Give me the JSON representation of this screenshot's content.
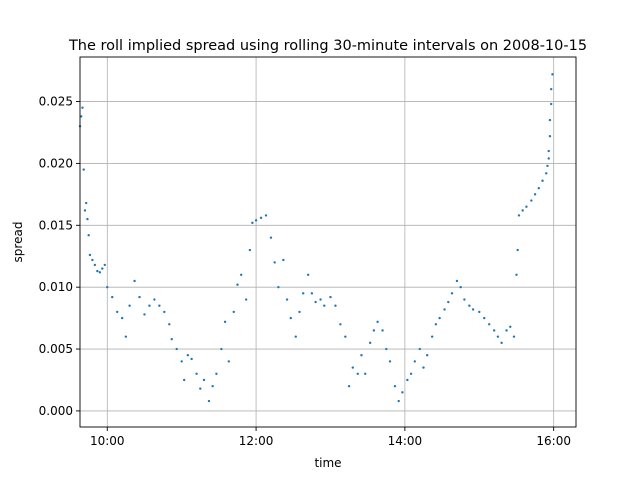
{
  "chart_data": {
    "type": "scatter",
    "title": "The roll implied spread using rolling 30-minute intervals on 2008-10-15",
    "xlabel": "time",
    "ylabel": "spread",
    "x_ticks": [
      "10:00",
      "12:00",
      "14:00",
      "16:00"
    ],
    "y_ticks": [
      "0.000",
      "0.005",
      "0.010",
      "0.015",
      "0.020",
      "0.025"
    ],
    "xlim": [
      "09:38",
      "16:18"
    ],
    "ylim": [
      -0.0013,
      0.0286
    ],
    "grid": true,
    "marker_color": "#1f77b4",
    "series": [
      {
        "points": [
          [
            "09:35",
            0.0215
          ],
          [
            "09:36",
            0.0222
          ],
          [
            "09:37",
            0.0226
          ],
          [
            "09:38",
            0.023
          ],
          [
            "09:39",
            0.0238
          ],
          [
            "09:40",
            0.0245
          ],
          [
            "09:41",
            0.0195
          ],
          [
            "09:42",
            0.0162
          ],
          [
            "09:43",
            0.0168
          ],
          [
            "09:44",
            0.0155
          ],
          [
            "09:45",
            0.0142
          ],
          [
            "09:46",
            0.0126
          ],
          [
            "09:48",
            0.0122
          ],
          [
            "09:50",
            0.0118
          ],
          [
            "09:52",
            0.0113
          ],
          [
            "09:54",
            0.0112
          ],
          [
            "09:56",
            0.0115
          ],
          [
            "09:58",
            0.0118
          ],
          [
            "10:00",
            0.01
          ],
          [
            "10:04",
            0.0092
          ],
          [
            "10:08",
            0.008
          ],
          [
            "10:12",
            0.0075
          ],
          [
            "10:15",
            0.006
          ],
          [
            "10:18",
            0.0085
          ],
          [
            "10:22",
            0.0105
          ],
          [
            "10:26",
            0.0092
          ],
          [
            "10:30",
            0.0078
          ],
          [
            "10:34",
            0.0085
          ],
          [
            "10:38",
            0.009
          ],
          [
            "10:42",
            0.0085
          ],
          [
            "10:46",
            0.008
          ],
          [
            "10:50",
            0.007
          ],
          [
            "10:52",
            0.0058
          ],
          [
            "10:56",
            0.005
          ],
          [
            "11:00",
            0.004
          ],
          [
            "11:02",
            0.0025
          ],
          [
            "11:05",
            0.0045
          ],
          [
            "11:08",
            0.0042
          ],
          [
            "11:12",
            0.003
          ],
          [
            "11:15",
            0.0018
          ],
          [
            "11:18",
            0.0025
          ],
          [
            "11:22",
            0.0008
          ],
          [
            "11:25",
            0.002
          ],
          [
            "11:28",
            0.003
          ],
          [
            "11:32",
            0.005
          ],
          [
            "11:35",
            0.0072
          ],
          [
            "11:38",
            0.004
          ],
          [
            "11:42",
            0.008
          ],
          [
            "11:45",
            0.0102
          ],
          [
            "11:48",
            0.011
          ],
          [
            "11:52",
            0.009
          ],
          [
            "11:55",
            0.013
          ],
          [
            "11:57",
            0.0152
          ],
          [
            "12:00",
            0.0154
          ],
          [
            "12:04",
            0.0156
          ],
          [
            "12:08",
            0.0158
          ],
          [
            "12:12",
            0.014
          ],
          [
            "12:15",
            0.012
          ],
          [
            "12:18",
            0.01
          ],
          [
            "12:22",
            0.0122
          ],
          [
            "12:25",
            0.009
          ],
          [
            "12:28",
            0.0075
          ],
          [
            "12:32",
            0.006
          ],
          [
            "12:35",
            0.008
          ],
          [
            "12:38",
            0.0095
          ],
          [
            "12:42",
            0.011
          ],
          [
            "12:45",
            0.0095
          ],
          [
            "12:48",
            0.0088
          ],
          [
            "12:52",
            0.009
          ],
          [
            "12:55",
            0.0085
          ],
          [
            "13:00",
            0.0092
          ],
          [
            "13:04",
            0.0085
          ],
          [
            "13:08",
            0.007
          ],
          [
            "13:12",
            0.006
          ],
          [
            "13:15",
            0.002
          ],
          [
            "13:18",
            0.0035
          ],
          [
            "13:22",
            0.003
          ],
          [
            "13:25",
            0.0045
          ],
          [
            "13:28",
            0.003
          ],
          [
            "13:32",
            0.0055
          ],
          [
            "13:35",
            0.0065
          ],
          [
            "13:38",
            0.0072
          ],
          [
            "13:42",
            0.0065
          ],
          [
            "13:45",
            0.005
          ],
          [
            "13:48",
            0.004
          ],
          [
            "13:52",
            0.002
          ],
          [
            "13:55",
            0.0008
          ],
          [
            "13:58",
            0.0015
          ],
          [
            "14:02",
            0.0025
          ],
          [
            "14:05",
            0.003
          ],
          [
            "14:08",
            0.004
          ],
          [
            "14:12",
            0.005
          ],
          [
            "14:15",
            0.0035
          ],
          [
            "14:18",
            0.0045
          ],
          [
            "14:22",
            0.006
          ],
          [
            "14:25",
            0.007
          ],
          [
            "14:28",
            0.0075
          ],
          [
            "14:32",
            0.0082
          ],
          [
            "14:35",
            0.0088
          ],
          [
            "14:38",
            0.0095
          ],
          [
            "14:42",
            0.0105
          ],
          [
            "14:45",
            0.01
          ],
          [
            "14:48",
            0.009
          ],
          [
            "14:52",
            0.0085
          ],
          [
            "14:55",
            0.0082
          ],
          [
            "15:00",
            0.008
          ],
          [
            "15:04",
            0.0075
          ],
          [
            "15:08",
            0.007
          ],
          [
            "15:12",
            0.0065
          ],
          [
            "15:15",
            0.006
          ],
          [
            "15:18",
            0.0055
          ],
          [
            "15:22",
            0.0065
          ],
          [
            "15:25",
            0.0068
          ],
          [
            "15:28",
            0.006
          ],
          [
            "15:30",
            0.011
          ],
          [
            "15:31",
            0.013
          ],
          [
            "15:32",
            0.0158
          ],
          [
            "15:35",
            0.0162
          ],
          [
            "15:38",
            0.0165
          ],
          [
            "15:42",
            0.017
          ],
          [
            "15:45",
            0.0175
          ],
          [
            "15:48",
            0.018
          ],
          [
            "15:51",
            0.0186
          ],
          [
            "15:54",
            0.0192
          ],
          [
            "15:55",
            0.0198
          ],
          [
            "15:56",
            0.0204
          ],
          [
            "15:56",
            0.021
          ],
          [
            "15:57",
            0.0222
          ],
          [
            "15:57",
            0.0235
          ],
          [
            "15:58",
            0.0248
          ],
          [
            "15:58",
            0.026
          ],
          [
            "15:59",
            0.0272
          ]
        ]
      }
    ]
  }
}
